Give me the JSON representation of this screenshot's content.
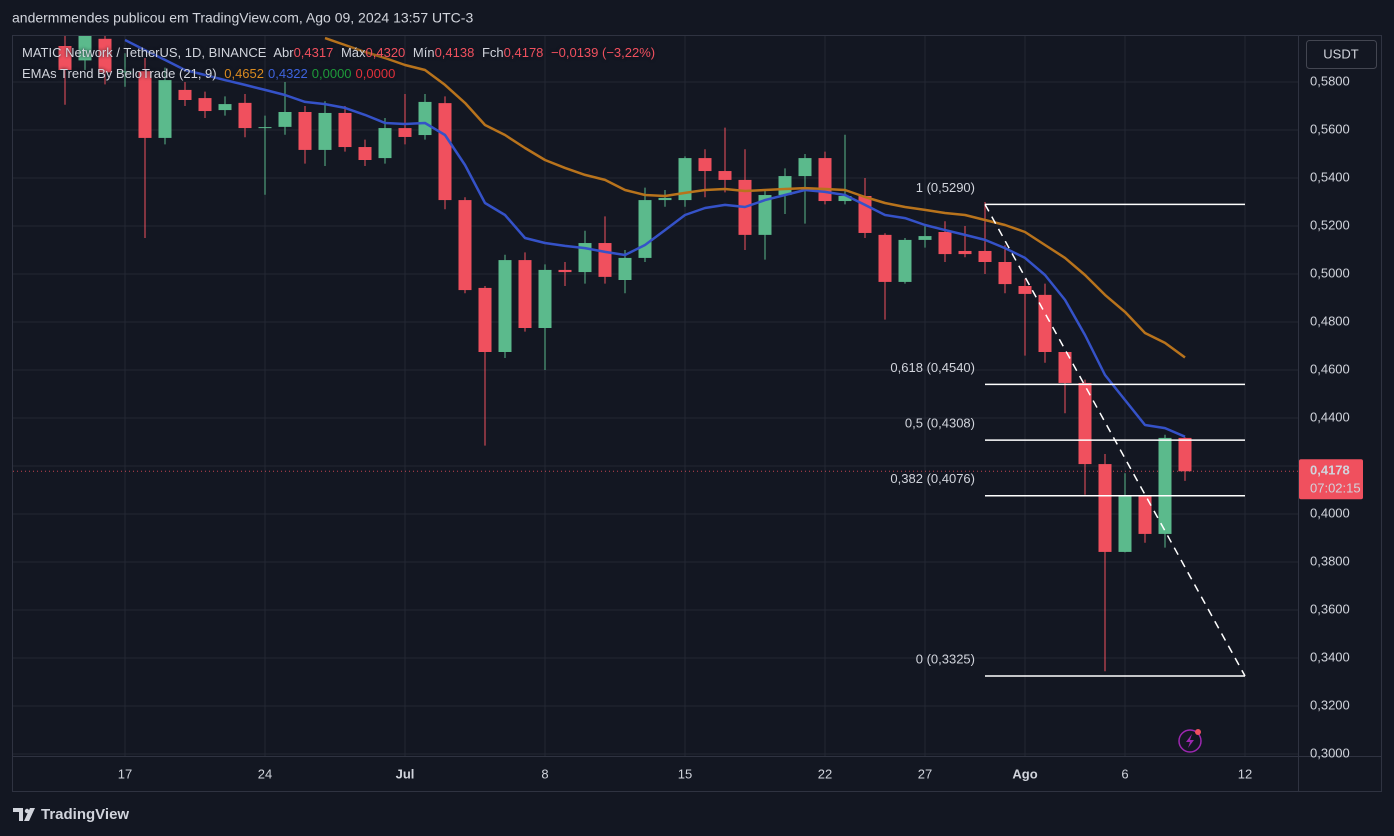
{
  "header": "andermmendes publicou em TradingView.com, Ago 09, 2024 13:57 UTC-3",
  "legend": {
    "symbol": "MATIC Network / TetherUS, 1D, BINANCE",
    "open_label": "Abr",
    "open": "0,4317",
    "high_label": "Máx",
    "high": "0,4320",
    "low_label": "Mín",
    "low": "0,4138",
    "close_label": "Fch",
    "close": "0,4178",
    "change": "−0,0139 (−3,22%)",
    "indicator": "EMAs Trend By BeloTrade (21, 9)",
    "indicator_values": [
      {
        "text": "0,4652",
        "color": "#d98a1f"
      },
      {
        "text": "0,4322",
        "color": "#3d63dd"
      },
      {
        "text": "0,0000",
        "color": "#1e9a3a"
      },
      {
        "text": "0,0000",
        "color": "#e0303a"
      }
    ]
  },
  "currency": "USDT",
  "brand": "TradingView",
  "chart_data": {
    "type": "candlestick",
    "x": [
      "2024-06-14",
      "2024-06-15",
      "2024-06-16",
      "2024-06-17",
      "2024-06-18",
      "2024-06-19",
      "2024-06-20",
      "2024-06-21",
      "2024-06-22",
      "2024-06-23",
      "2024-06-24",
      "2024-06-25",
      "2024-06-26",
      "2024-06-27",
      "2024-06-28",
      "2024-06-29",
      "2024-06-30",
      "2024-07-01",
      "2024-07-02",
      "2024-07-03",
      "2024-07-04",
      "2024-07-05",
      "2024-07-06",
      "2024-07-07",
      "2024-07-08",
      "2024-07-09",
      "2024-07-10",
      "2024-07-11",
      "2024-07-12",
      "2024-07-13",
      "2024-07-14",
      "2024-07-15",
      "2024-07-16",
      "2024-07-17",
      "2024-07-18",
      "2024-07-19",
      "2024-07-20",
      "2024-07-21",
      "2024-07-22",
      "2024-07-23",
      "2024-07-24",
      "2024-07-25",
      "2024-07-26",
      "2024-07-27",
      "2024-07-28",
      "2024-07-29",
      "2024-07-30",
      "2024-07-31",
      "2024-08-01",
      "2024-08-02",
      "2024-08-03",
      "2024-08-04",
      "2024-08-05",
      "2024-08-06",
      "2024-08-07",
      "2024-08-08",
      "2024-08-09"
    ],
    "open": [
      0.595,
      0.589,
      0.598,
      0.584,
      0.5845,
      0.5567,
      0.5767,
      0.5733,
      0.5683,
      0.5713,
      0.5608,
      0.5613,
      0.5675,
      0.5517,
      0.5671,
      0.5529,
      0.5483,
      0.5608,
      0.5579,
      0.5712,
      0.5308,
      0.4942,
      0.4675,
      0.5058,
      0.4775,
      0.5017,
      0.5008,
      0.5129,
      0.4975,
      0.5067,
      0.5308,
      0.5308,
      0.5483,
      0.5429,
      0.5392,
      0.5163,
      0.5329,
      0.5408,
      0.5483,
      0.5304,
      0.5325,
      0.5163,
      0.4967,
      0.5142,
      0.5175,
      0.5096,
      0.5096,
      0.505,
      0.495,
      0.4913,
      0.4675,
      0.4546,
      0.4208,
      0.3842,
      0.4075,
      0.3917,
      0.4317
    ],
    "high": [
      0.605,
      0.605,
      0.605,
      0.592,
      0.59,
      0.586,
      0.58,
      0.576,
      0.574,
      0.575,
      0.566,
      0.58,
      0.57,
      0.572,
      0.57,
      0.556,
      0.565,
      0.575,
      0.575,
      0.574,
      0.532,
      0.495,
      0.508,
      0.509,
      0.504,
      0.505,
      0.518,
      0.524,
      0.51,
      0.536,
      0.535,
      0.549,
      0.552,
      0.561,
      0.552,
      0.535,
      0.544,
      0.55,
      0.551,
      0.558,
      0.54,
      0.517,
      0.515,
      0.52,
      0.522,
      0.52,
      0.53,
      0.512,
      0.498,
      0.496,
      0.4675,
      0.456,
      0.425,
      0.417,
      0.408,
      0.433,
      0.432
    ],
    "low": [
      0.5705,
      0.585,
      0.579,
      0.578,
      0.515,
      0.554,
      0.57,
      0.565,
      0.566,
      0.557,
      0.533,
      0.558,
      0.546,
      0.545,
      0.551,
      0.545,
      0.546,
      0.554,
      0.556,
      0.527,
      0.492,
      0.4285,
      0.465,
      0.476,
      0.46,
      0.495,
      0.496,
      0.496,
      0.492,
      0.505,
      0.528,
      0.528,
      0.532,
      0.534,
      0.51,
      0.506,
      0.525,
      0.521,
      0.529,
      0.529,
      0.515,
      0.481,
      0.496,
      0.511,
      0.505,
      0.507,
      0.5,
      0.492,
      0.466,
      0.463,
      0.442,
      0.408,
      0.3345,
      0.384,
      0.388,
      0.386,
      0.4138
    ],
    "close": [
      0.585,
      0.6,
      0.584,
      0.5845,
      0.5567,
      0.5808,
      0.5725,
      0.5679,
      0.5708,
      0.5608,
      0.5612,
      0.5675,
      0.5517,
      0.5671,
      0.5529,
      0.5475,
      0.5608,
      0.5571,
      0.5717,
      0.5308,
      0.4933,
      0.4675,
      0.5058,
      0.4775,
      0.5017,
      0.5008,
      0.5129,
      0.4988,
      0.5067,
      0.5308,
      0.5317,
      0.5483,
      0.5429,
      0.5392,
      0.5163,
      0.5329,
      0.5408,
      0.5483,
      0.5304,
      0.5325,
      0.5171,
      0.4967,
      0.5142,
      0.5158,
      0.5083,
      0.5083,
      0.505,
      0.4958,
      0.4917,
      0.4675,
      0.4546,
      0.4208,
      0.3842,
      0.4075,
      0.3917,
      0.4317,
      0.4178
    ],
    "up_color": "#5bba8c",
    "down_color": "#f0505e",
    "overlays": [
      {
        "color": "#3552c8",
        "values": [
          null,
          null,
          null,
          0.5975,
          0.5933,
          0.5892,
          0.585,
          0.5829,
          0.5808,
          0.5788,
          0.5767,
          0.5746,
          0.5717,
          0.5708,
          0.5692,
          0.5663,
          0.5629,
          0.5625,
          0.5629,
          0.5579,
          0.5454,
          0.5296,
          0.5246,
          0.515,
          0.5129,
          0.5117,
          0.5108,
          0.5092,
          0.5079,
          0.5121,
          0.5183,
          0.5246,
          0.5275,
          0.5288,
          0.5279,
          0.5308,
          0.5329,
          0.535,
          0.5342,
          0.5329,
          0.5288,
          0.5246,
          0.5233,
          0.5204,
          0.5183,
          0.5163,
          0.5142,
          0.5108,
          0.5067,
          0.4996,
          0.4892,
          0.4746,
          0.4579,
          0.4475,
          0.4371,
          0.4358,
          0.4322
        ]
      },
      {
        "color": "#b8731c",
        "values": [
          null,
          null,
          null,
          null,
          null,
          null,
          null,
          null,
          null,
          null,
          null,
          null,
          null,
          0.5983,
          0.5954,
          0.5925,
          0.59,
          0.5871,
          0.585,
          0.5788,
          0.5713,
          0.5621,
          0.5579,
          0.5525,
          0.5475,
          0.5442,
          0.5413,
          0.5392,
          0.535,
          0.5329,
          0.5325,
          0.5338,
          0.535,
          0.5354,
          0.5346,
          0.535,
          0.5354,
          0.5358,
          0.5354,
          0.535,
          0.5321,
          0.5296,
          0.5279,
          0.5267,
          0.5254,
          0.5246,
          0.5225,
          0.5204,
          0.5175,
          0.5121,
          0.5067,
          0.4996,
          0.4913,
          0.4842,
          0.4754,
          0.4713,
          0.4652
        ]
      }
    ],
    "fib": {
      "start": "2024-07-30",
      "end": "2024-08-12",
      "color": "#ffffff",
      "levels": [
        {
          "value": 0.529,
          "label": "1 (0,5290)"
        },
        {
          "value": 0.454,
          "label": "0,618 (0,4540)"
        },
        {
          "value": 0.4308,
          "label": "0,5 (0,4308)"
        },
        {
          "value": 0.4076,
          "label": "0,382 (0,4076)"
        },
        {
          "value": 0.3325,
          "label": "0 (0,3325)"
        }
      ]
    },
    "last_price": {
      "label": "0,4178",
      "countdown": "07:02:15"
    },
    "xlim": [
      "2024-06-12",
      "2024-08-14"
    ],
    "xticks": [
      {
        "value": "2024-06-17",
        "label": "17"
      },
      {
        "value": "2024-06-24",
        "label": "24"
      },
      {
        "value": "2024-07-01",
        "label": "Jul"
      },
      {
        "value": "2024-07-08",
        "label": "8"
      },
      {
        "value": "2024-07-15",
        "label": "15"
      },
      {
        "value": "2024-07-22",
        "label": "22"
      },
      {
        "value": "2024-07-27",
        "label": "27"
      },
      {
        "value": "2024-08-01",
        "label": "Ago"
      },
      {
        "value": "2024-08-06",
        "label": "6"
      },
      {
        "value": "2024-08-12",
        "label": "12"
      }
    ],
    "ylim": [
      0.3,
      0.6
    ],
    "yticks": [
      {
        "value": 0.3,
        "label": "0,3000"
      },
      {
        "value": 0.32,
        "label": "0,3200"
      },
      {
        "value": 0.34,
        "label": "0,3400"
      },
      {
        "value": 0.36,
        "label": "0,3600"
      },
      {
        "value": 0.38,
        "label": "0,3800"
      },
      {
        "value": 0.4,
        "label": "0,4000"
      },
      {
        "value": 0.42,
        "label": "0,4200"
      },
      {
        "value": 0.44,
        "label": "0,4400"
      },
      {
        "value": 0.46,
        "label": "0,4600"
      },
      {
        "value": 0.48,
        "label": "0,4800"
      },
      {
        "value": 0.5,
        "label": "0,5000"
      },
      {
        "value": 0.52,
        "label": "0,5200"
      },
      {
        "value": 0.54,
        "label": "0,5400"
      },
      {
        "value": 0.56,
        "label": "0,5600"
      },
      {
        "value": 0.58,
        "label": "0,5800"
      }
    ],
    "grid": true
  }
}
